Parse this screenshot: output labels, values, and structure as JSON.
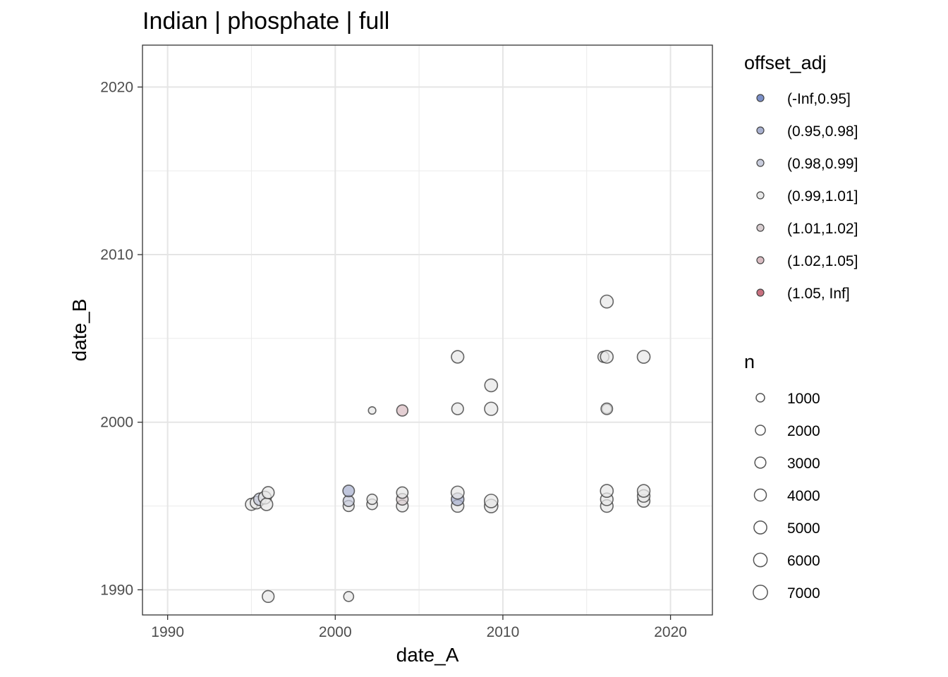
{
  "chart_data": {
    "type": "scatter",
    "title": "Indian | phosphate | full",
    "xlabel": "date_A",
    "ylabel": "date_B",
    "xlim": [
      1988.5,
      2022.5
    ],
    "ylim": [
      1988.5,
      2022.5
    ],
    "x_ticks": [
      1990,
      2000,
      2010,
      2020
    ],
    "y_ticks": [
      1990,
      2000,
      2010,
      2020
    ],
    "x_tick_labels": [
      "1990",
      "2000",
      "2010",
      "2020"
    ],
    "y_tick_labels": [
      "1990",
      "2000",
      "2010",
      "2020"
    ],
    "grid": true,
    "legend_position": "right",
    "color_legend": {
      "title": "offset_adj",
      "items": [
        {
          "label": "(-Inf,0.95]",
          "color": "#7b8fc7"
        },
        {
          "label": "(0.95,0.98]",
          "color": "#a8b0cf"
        },
        {
          "label": "(0.98,0.99]",
          "color": "#c8ccdc"
        },
        {
          "label": "(0.99,1.01]",
          "color": "#e8e8e8"
        },
        {
          "label": "(1.01,1.02]",
          "color": "#d8cdd0"
        },
        {
          "label": "(1.02,1.05]",
          "color": "#d9bcc2"
        },
        {
          "label": "(1.05, Inf]",
          "color": "#c8707f"
        }
      ]
    },
    "size_legend": {
      "title": "n",
      "items": [
        {
          "label": "1000",
          "value": 1000
        },
        {
          "label": "2000",
          "value": 2000
        },
        {
          "label": "3000",
          "value": 3000
        },
        {
          "label": "4000",
          "value": 4000
        },
        {
          "label": "5000",
          "value": 5000
        },
        {
          "label": "6000",
          "value": 6000
        },
        {
          "label": "7000",
          "value": 7000
        }
      ]
    },
    "points": [
      {
        "x": 1995.0,
        "y": 1995.1,
        "n": 4000,
        "offset_class": 3
      },
      {
        "x": 1995.3,
        "y": 1995.2,
        "n": 4500,
        "offset_class": 3
      },
      {
        "x": 1995.5,
        "y": 1995.4,
        "n": 4500,
        "offset_class": 2
      },
      {
        "x": 1995.8,
        "y": 1995.5,
        "n": 5000,
        "offset_class": 3
      },
      {
        "x": 1995.9,
        "y": 1995.1,
        "n": 4500,
        "offset_class": 3
      },
      {
        "x": 1996.0,
        "y": 1995.8,
        "n": 4000,
        "offset_class": 3
      },
      {
        "x": 1996.0,
        "y": 1989.6,
        "n": 3800,
        "offset_class": 3
      },
      {
        "x": 2000.8,
        "y": 1995.0,
        "n": 3000,
        "offset_class": 3
      },
      {
        "x": 2000.8,
        "y": 1995.3,
        "n": 3000,
        "offset_class": 2
      },
      {
        "x": 2000.8,
        "y": 1995.9,
        "n": 3500,
        "offset_class": 1
      },
      {
        "x": 2000.8,
        "y": 1989.6,
        "n": 2000,
        "offset_class": 3
      },
      {
        "x": 2002.2,
        "y": 1995.1,
        "n": 2600,
        "offset_class": 3
      },
      {
        "x": 2002.2,
        "y": 1995.4,
        "n": 2300,
        "offset_class": 3
      },
      {
        "x": 2002.2,
        "y": 2000.7,
        "n": 500,
        "offset_class": 3
      },
      {
        "x": 2004.0,
        "y": 1995.0,
        "n": 3700,
        "offset_class": 3
      },
      {
        "x": 2004.0,
        "y": 1995.4,
        "n": 3600,
        "offset_class": 4
      },
      {
        "x": 2004.0,
        "y": 1995.8,
        "n": 3400,
        "offset_class": 3
      },
      {
        "x": 2004.0,
        "y": 2000.7,
        "n": 3100,
        "offset_class": 5
      },
      {
        "x": 2007.3,
        "y": 1995.0,
        "n": 4500,
        "offset_class": 3
      },
      {
        "x": 2007.3,
        "y": 1995.4,
        "n": 4700,
        "offset_class": 1
      },
      {
        "x": 2007.3,
        "y": 1995.8,
        "n": 5100,
        "offset_class": 3
      },
      {
        "x": 2007.3,
        "y": 2000.8,
        "n": 3700,
        "offset_class": 3
      },
      {
        "x": 2007.3,
        "y": 2003.9,
        "n": 4500,
        "offset_class": 3
      },
      {
        "x": 2009.3,
        "y": 1995.0,
        "n": 5800,
        "offset_class": 3
      },
      {
        "x": 2009.3,
        "y": 1995.3,
        "n": 5800,
        "offset_class": 3
      },
      {
        "x": 2009.3,
        "y": 2000.8,
        "n": 5400,
        "offset_class": 3
      },
      {
        "x": 2009.3,
        "y": 2002.2,
        "n": 4900,
        "offset_class": 3
      },
      {
        "x": 2016.2,
        "y": 1995.0,
        "n": 4600,
        "offset_class": 3
      },
      {
        "x": 2016.2,
        "y": 1995.4,
        "n": 4600,
        "offset_class": 3
      },
      {
        "x": 2016.2,
        "y": 1995.9,
        "n": 4900,
        "offset_class": 3
      },
      {
        "x": 2016.2,
        "y": 2000.8,
        "n": 1600,
        "offset_class": 3
      },
      {
        "x": 2016.2,
        "y": 2000.8,
        "n": 3500,
        "offset_class": 3
      },
      {
        "x": 2016.0,
        "y": 2003.9,
        "n": 3000,
        "offset_class": 3
      },
      {
        "x": 2016.2,
        "y": 2003.9,
        "n": 4800,
        "offset_class": 3
      },
      {
        "x": 2016.2,
        "y": 2007.2,
        "n": 5000,
        "offset_class": 3
      },
      {
        "x": 2018.4,
        "y": 1995.3,
        "n": 4500,
        "offset_class": 3
      },
      {
        "x": 2018.4,
        "y": 1995.6,
        "n": 4600,
        "offset_class": 3
      },
      {
        "x": 2018.4,
        "y": 1995.9,
        "n": 4700,
        "offset_class": 3
      },
      {
        "x": 2018.4,
        "y": 2003.9,
        "n": 4900,
        "offset_class": 3
      }
    ]
  }
}
